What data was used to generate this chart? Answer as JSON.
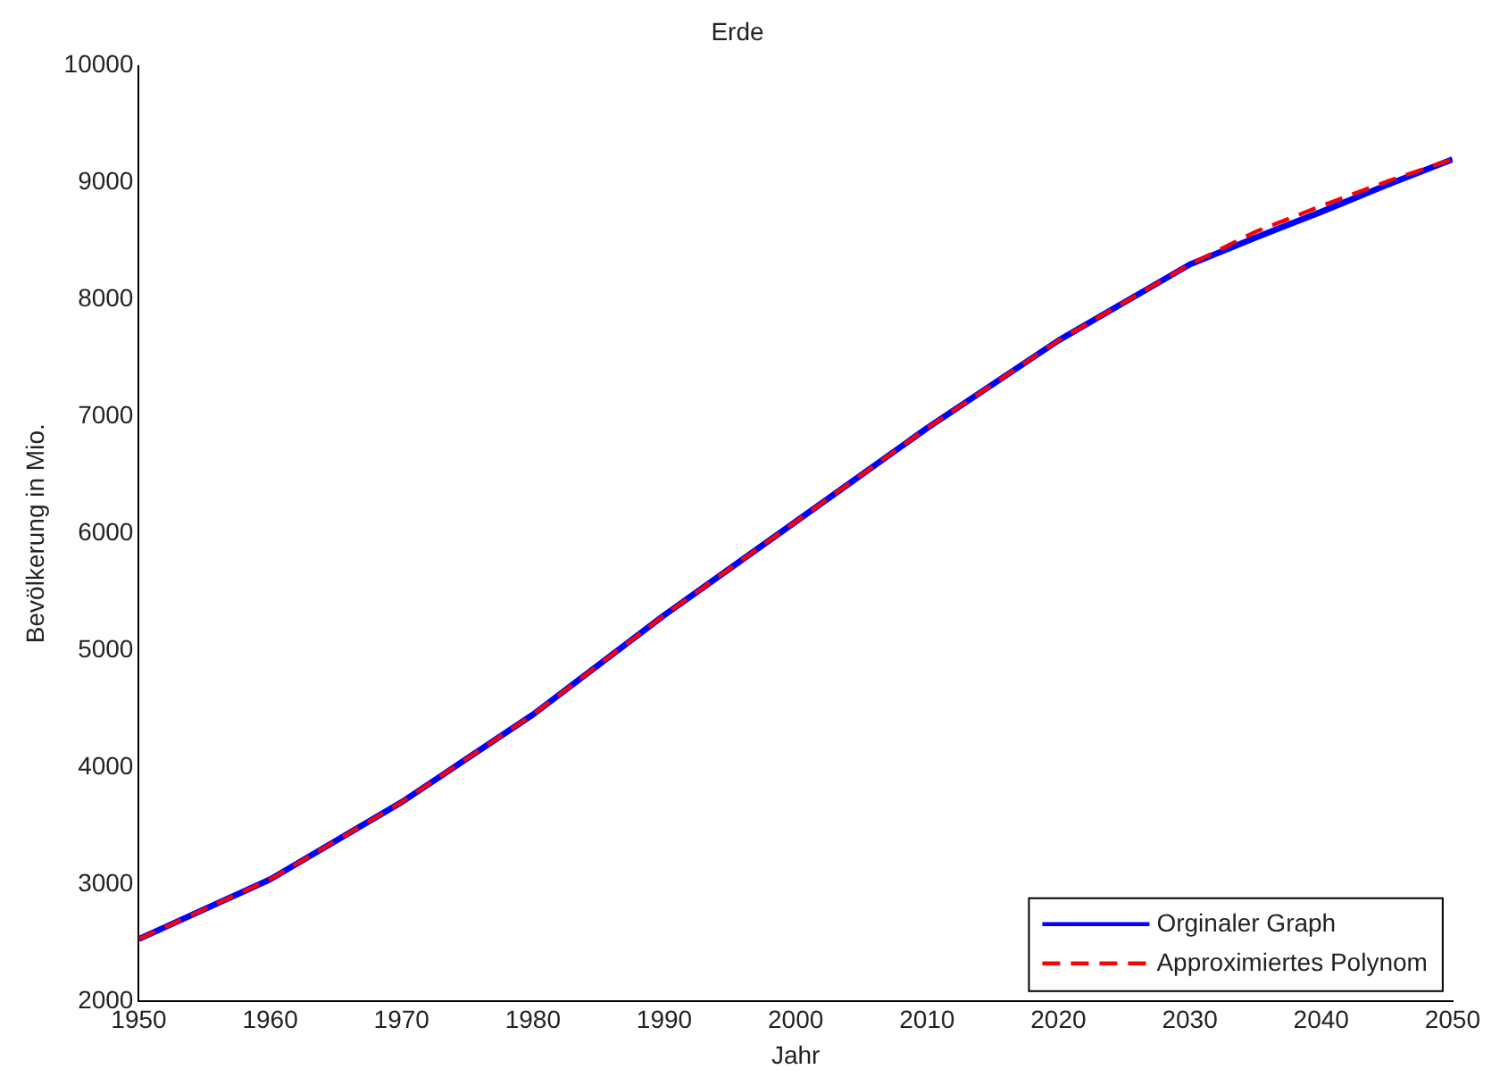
{
  "chart_data": {
    "type": "line",
    "title": "Erde",
    "xlabel": "Jahr",
    "ylabel": "Bevölkerung in Mio.",
    "x": [
      1950,
      1960,
      1970,
      1980,
      1990,
      2000,
      2010,
      2020,
      2030,
      2035,
      2040,
      2045,
      2050
    ],
    "series": [
      {
        "name": "Orginaler Graph",
        "color": "#0000ff",
        "line_style": "solid",
        "values": [
          2530,
          3040,
          3700,
          4450,
          5300,
          6100,
          6900,
          7650,
          8300,
          8530,
          8750,
          8980,
          9200
        ]
      },
      {
        "name": "Approximiertes Polynom",
        "color": "#ff0000",
        "line_style": "dashed",
        "values": [
          2530,
          3040,
          3700,
          4450,
          5300,
          6100,
          6900,
          7650,
          8300,
          8580,
          8800,
          9010,
          9200
        ]
      }
    ],
    "xlim": [
      1950,
      2050
    ],
    "xticks": [
      1950,
      1960,
      1970,
      1980,
      1990,
      2000,
      2010,
      2020,
      2030,
      2040,
      2050
    ],
    "ylim": [
      2000,
      10000
    ],
    "yticks": [
      2000,
      3000,
      4000,
      5000,
      6000,
      7000,
      8000,
      9000,
      10000
    ],
    "grid": false,
    "legend": "bottom right",
    "marker": "none"
  }
}
